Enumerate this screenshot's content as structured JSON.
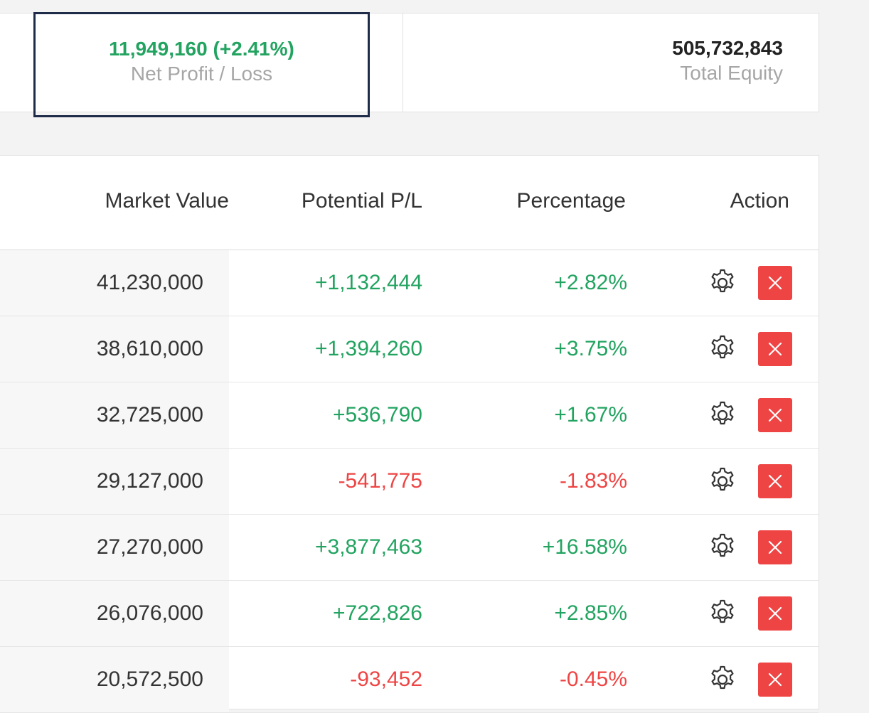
{
  "summary": {
    "net_pl_value": "11,949,160 (+2.41%)",
    "net_pl_label": "Net Profit / Loss",
    "total_equity_value": "505,732,843",
    "total_equity_label": "Total Equity"
  },
  "table": {
    "columns": {
      "market_value": "Market Value",
      "potential_pl": "Potential P/L",
      "percentage": "Percentage",
      "action": "Action"
    },
    "rows": [
      {
        "market_value": "41,230,000",
        "potential_pl": "+1,132,444",
        "percentage": "+2.82%",
        "status": "pos"
      },
      {
        "market_value": "38,610,000",
        "potential_pl": "+1,394,260",
        "percentage": "+3.75%",
        "status": "pos"
      },
      {
        "market_value": "32,725,000",
        "potential_pl": "+536,790",
        "percentage": "+1.67%",
        "status": "pos"
      },
      {
        "market_value": "29,127,000",
        "potential_pl": "-541,775",
        "percentage": "-1.83%",
        "status": "neg"
      },
      {
        "market_value": "27,270,000",
        "potential_pl": "+3,877,463",
        "percentage": "+16.58%",
        "status": "pos"
      },
      {
        "market_value": "26,076,000",
        "potential_pl": "+722,826",
        "percentage": "+2.85%",
        "status": "pos"
      },
      {
        "market_value": "20,572,500",
        "potential_pl": "-93,452",
        "percentage": "-0.45%",
        "status": "neg"
      }
    ]
  },
  "icons": {
    "settings": "gear-icon",
    "delete": "close-icon",
    "sort": "caret-down-icon"
  },
  "colors": {
    "positive": "#22a360",
    "negative": "#ef4444",
    "highlight_border": "#1e2c4a",
    "delete_button": "#ef4444"
  }
}
